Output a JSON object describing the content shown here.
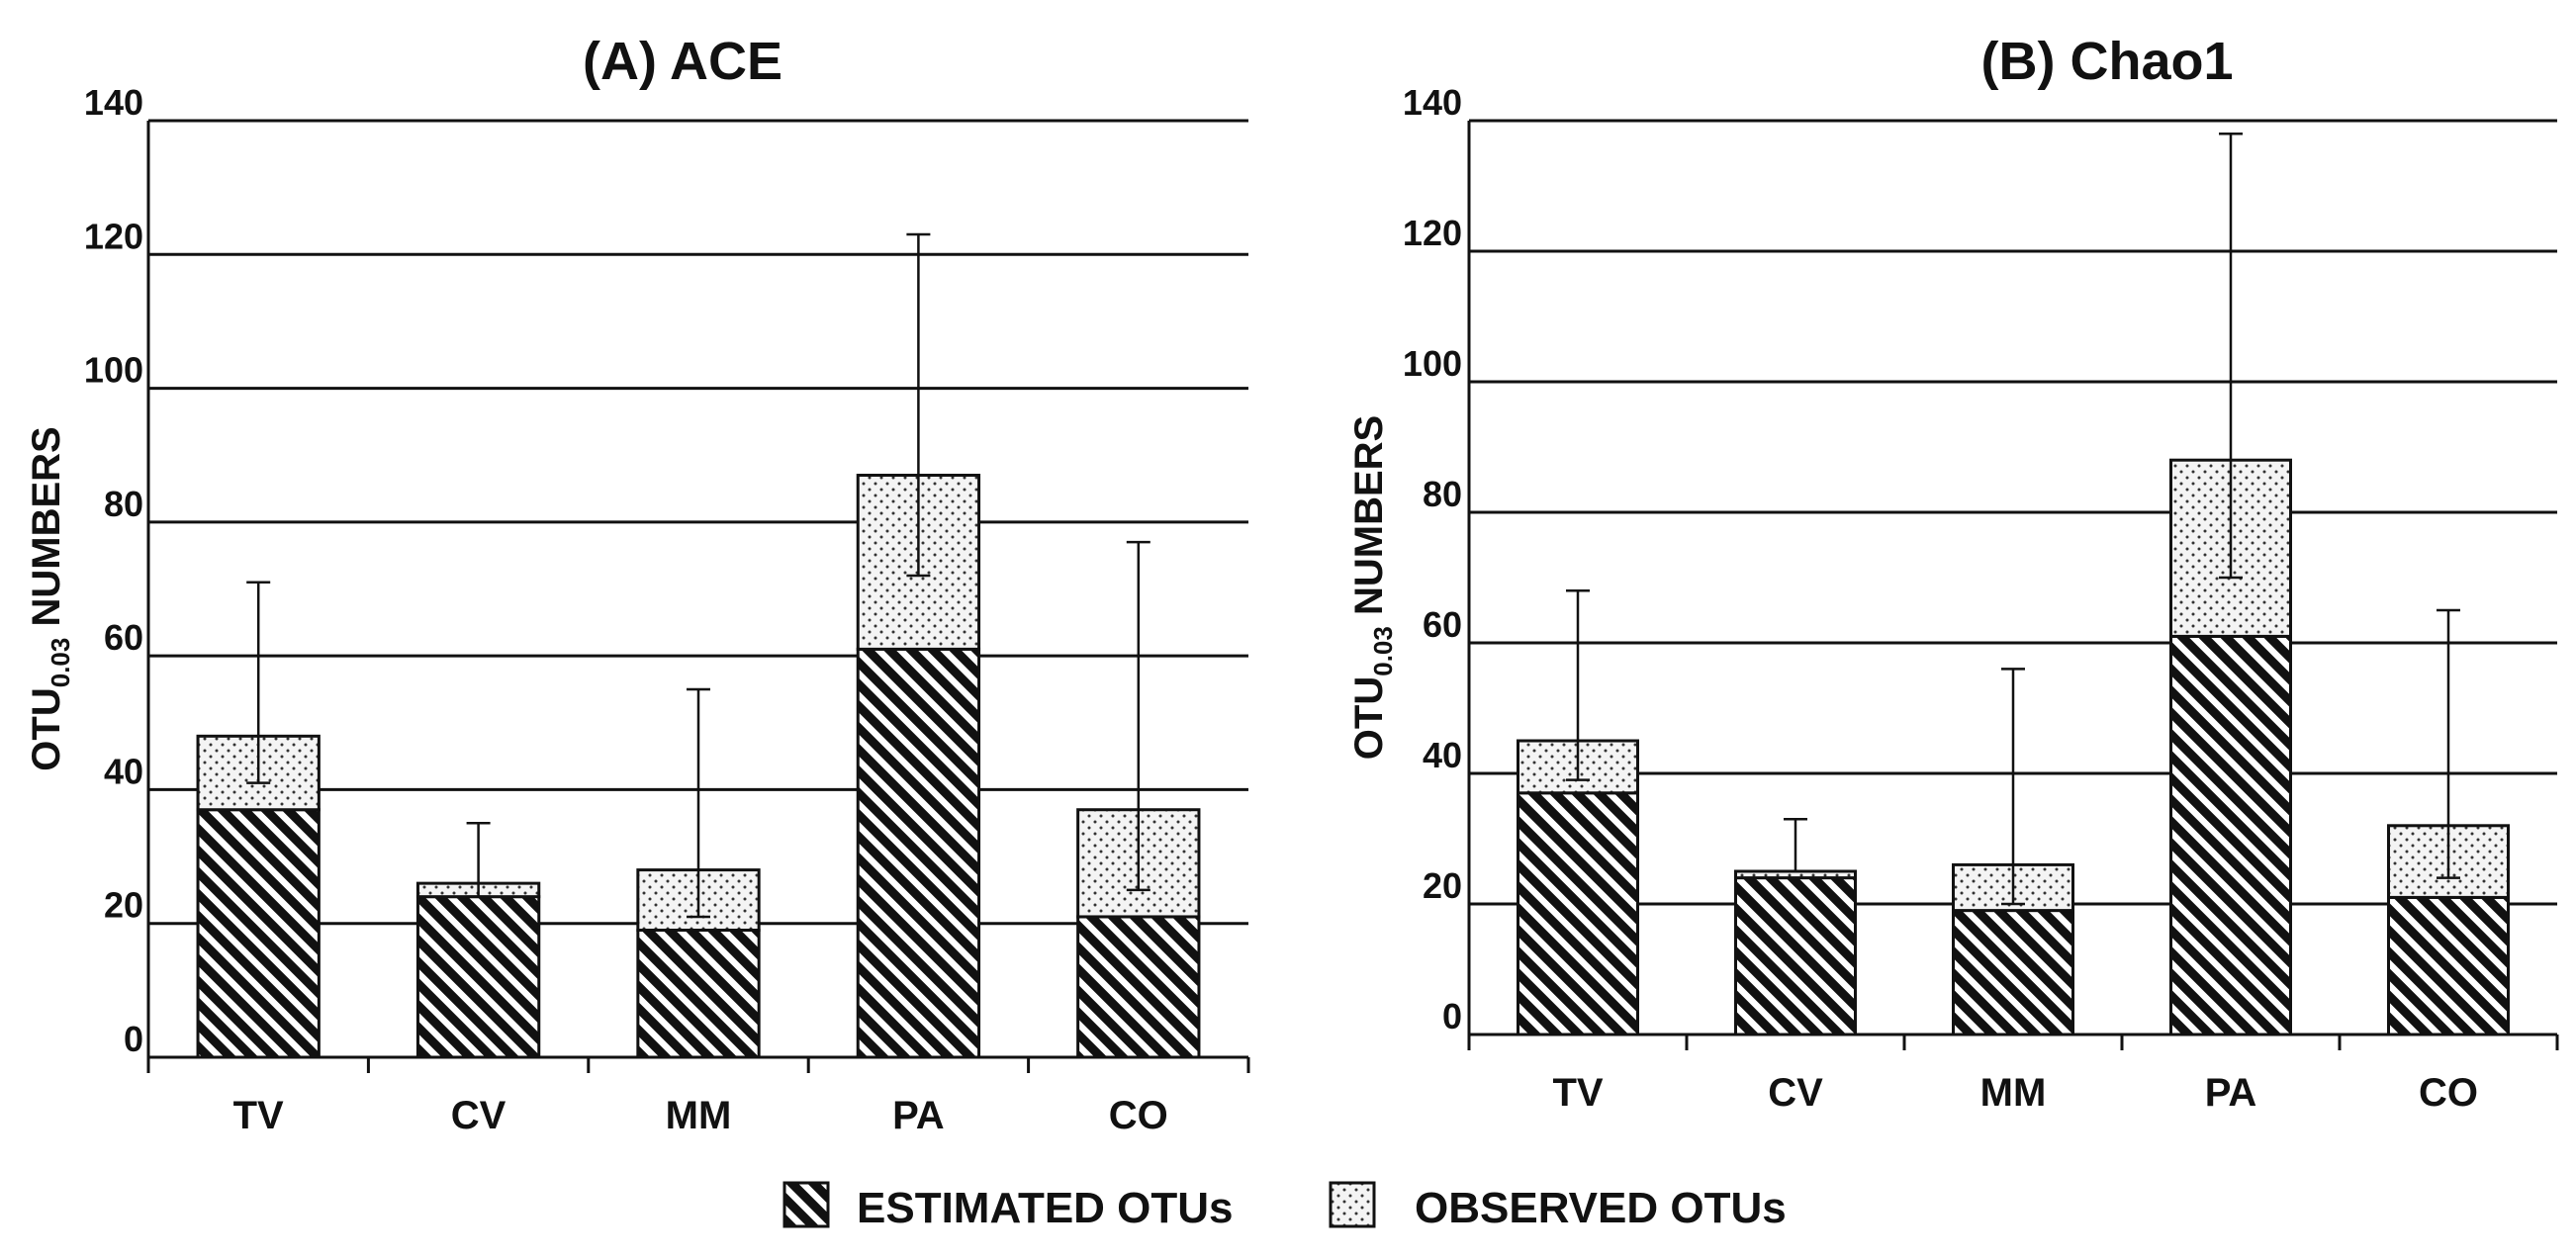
{
  "chart_data": [
    {
      "type": "bar",
      "stacked": true,
      "title": "(A) ACE",
      "ylabel_main": "OTU",
      "ylabel_sub": "0.03",
      "ylabel_rest": " NUMBERS",
      "xlabel": "",
      "ylim": [
        0,
        140
      ],
      "yticks": [
        0,
        20,
        40,
        60,
        80,
        100,
        120,
        140
      ],
      "grid": true,
      "categories": [
        "TV",
        "CV",
        "MM",
        "PA",
        "CO"
      ],
      "series": [
        {
          "name": "ESTIMATED OTUs",
          "pattern": "diagonal-hatch",
          "values": [
            37,
            24,
            19,
            61,
            21
          ]
        },
        {
          "name": "OBSERVED OTUs",
          "pattern": "dots",
          "values": [
            11,
            2,
            9,
            26,
            16
          ]
        }
      ],
      "error_bars": {
        "low": [
          41,
          24,
          21,
          72,
          25
        ],
        "high": [
          71,
          35,
          55,
          123,
          77
        ]
      }
    },
    {
      "type": "bar",
      "stacked": true,
      "title": "(B) Chao1",
      "ylabel_main": "OTU",
      "ylabel_sub": "0.03",
      "ylabel_rest": " NUMBERS",
      "xlabel": "",
      "ylim": [
        0,
        140
      ],
      "yticks": [
        0,
        20,
        40,
        60,
        80,
        100,
        120,
        140
      ],
      "grid": true,
      "categories": [
        "TV",
        "CV",
        "MM",
        "PA",
        "CO"
      ],
      "series": [
        {
          "name": "ESTIMATED OTUs",
          "pattern": "diagonal-hatch",
          "values": [
            37,
            24,
            19,
            61,
            21
          ]
        },
        {
          "name": "OBSERVED OTUs",
          "pattern": "dots",
          "values": [
            8,
            1,
            7,
            27,
            11
          ]
        }
      ],
      "error_bars": {
        "low": [
          39,
          25,
          20,
          70,
          24
        ],
        "high": [
          68,
          33,
          56,
          138,
          65
        ]
      }
    }
  ],
  "legend": {
    "position": "bottom-center",
    "items": [
      {
        "label": "ESTIMATED OTUs",
        "pattern": "diagonal-hatch"
      },
      {
        "label": "OBSERVED OTUs",
        "pattern": "dots"
      }
    ]
  }
}
